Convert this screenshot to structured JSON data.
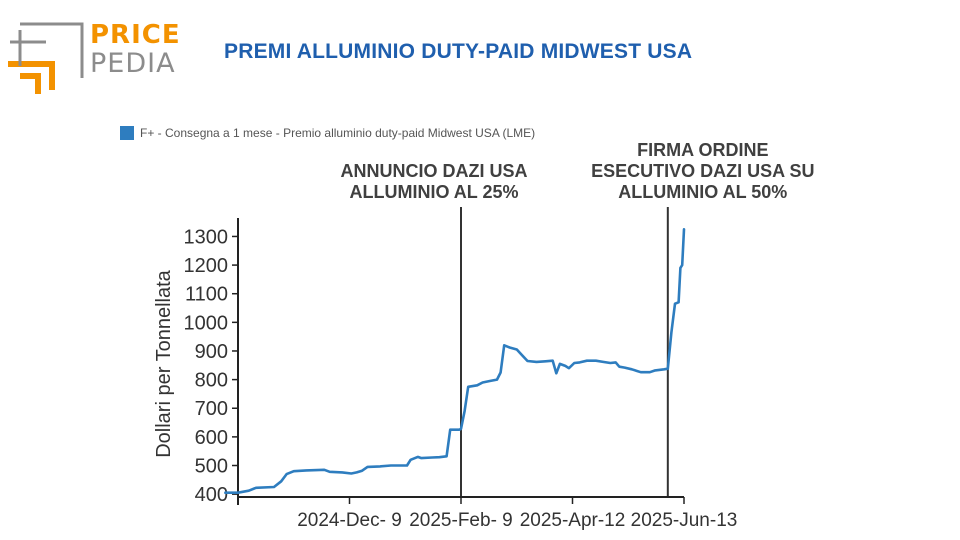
{
  "logo": {
    "line1": "PRICE",
    "line2": "PEDIA",
    "colors": {
      "orange": "#f39200",
      "gray": "#8c8c8c"
    }
  },
  "page_title": "PREMI ALLUMINIO DUTY-PAID MIDWEST USA",
  "colors": {
    "title": "#1f5fae",
    "series": "#2e7dbf",
    "annotation_line": "#333333",
    "annotation_text": "#404040"
  },
  "chart_data": {
    "type": "line",
    "title": "",
    "xlabel": "",
    "ylabel": "Dollari per Tonnellata",
    "ylim": [
      390,
      1340
    ],
    "yticks": [
      400,
      500,
      600,
      700,
      800,
      900,
      1000,
      1100,
      1200,
      1300
    ],
    "xlim": [
      "2024-10-01",
      "2025-06-15"
    ],
    "xticks": [
      {
        "date": "2024-12-09",
        "label": "2024-Dec- 9"
      },
      {
        "date": "2025-02-09",
        "label": "2025-Feb- 9"
      },
      {
        "date": "2025-04-12",
        "label": "2025-Apr-12"
      },
      {
        "date": "2025-06-13",
        "label": "2025-Jun-13"
      }
    ],
    "grid": false,
    "legend_position": "top-left",
    "series": [
      {
        "name": "F+ - Consegna a 1 mese - Premio alluminio duty-paid Midwest USA (LME)",
        "points": [
          [
            "2024-10-01",
            405
          ],
          [
            "2024-10-08",
            405
          ],
          [
            "2024-10-14",
            412
          ],
          [
            "2024-10-18",
            422
          ],
          [
            "2024-10-28",
            425
          ],
          [
            "2024-11-01",
            445
          ],
          [
            "2024-11-04",
            470
          ],
          [
            "2024-11-08",
            480
          ],
          [
            "2024-11-15",
            483
          ],
          [
            "2024-11-25",
            485
          ],
          [
            "2024-11-28",
            478
          ],
          [
            "2024-12-05",
            476
          ],
          [
            "2024-12-10",
            472
          ],
          [
            "2024-12-13",
            476
          ],
          [
            "2024-12-16",
            482
          ],
          [
            "2024-12-19",
            495
          ],
          [
            "2024-12-26",
            497
          ],
          [
            "2025-01-01",
            500
          ],
          [
            "2025-01-10",
            500
          ],
          [
            "2025-01-12",
            520
          ],
          [
            "2025-01-16",
            530
          ],
          [
            "2025-01-18",
            526
          ],
          [
            "2025-01-24",
            528
          ],
          [
            "2025-01-28",
            529
          ],
          [
            "2025-02-01",
            532
          ],
          [
            "2025-02-03",
            625
          ],
          [
            "2025-02-08",
            625
          ],
          [
            "2025-02-09",
            628
          ],
          [
            "2025-02-11",
            690
          ],
          [
            "2025-02-13",
            775
          ],
          [
            "2025-02-18",
            780
          ],
          [
            "2025-02-21",
            790
          ],
          [
            "2025-02-25",
            795
          ],
          [
            "2025-03-01",
            800
          ],
          [
            "2025-03-03",
            825
          ],
          [
            "2025-03-05",
            920
          ],
          [
            "2025-03-08",
            912
          ],
          [
            "2025-03-12",
            905
          ],
          [
            "2025-03-15",
            885
          ],
          [
            "2025-03-18",
            865
          ],
          [
            "2025-03-23",
            862
          ],
          [
            "2025-03-28",
            864
          ],
          [
            "2025-04-01",
            866
          ],
          [
            "2025-04-03",
            822
          ],
          [
            "2025-04-05",
            855
          ],
          [
            "2025-04-08",
            848
          ],
          [
            "2025-04-10",
            840
          ],
          [
            "2025-04-13",
            858
          ],
          [
            "2025-04-16",
            860
          ],
          [
            "2025-04-20",
            866
          ],
          [
            "2025-04-25",
            866
          ],
          [
            "2025-04-29",
            862
          ],
          [
            "2025-05-03",
            858
          ],
          [
            "2025-05-06",
            860
          ],
          [
            "2025-05-08",
            845
          ],
          [
            "2025-05-11",
            842
          ],
          [
            "2025-05-15",
            836
          ],
          [
            "2025-05-20",
            826
          ],
          [
            "2025-05-25",
            826
          ],
          [
            "2025-05-28",
            832
          ],
          [
            "2025-06-02",
            836
          ],
          [
            "2025-06-04",
            838
          ],
          [
            "2025-06-06",
            965
          ],
          [
            "2025-06-08",
            1065
          ],
          [
            "2025-06-10",
            1070
          ],
          [
            "2025-06-11",
            1190
          ],
          [
            "2025-06-12",
            1200
          ],
          [
            "2025-06-13",
            1325
          ]
        ]
      }
    ],
    "annotations": [
      {
        "date": "2025-02-09",
        "lines": [
          "ANNUNCIO DAZI USA",
          "ALLUMINIO AL 25%"
        ]
      },
      {
        "date": "2025-06-04",
        "lines": [
          "FIRMA ORDINE",
          "ESECUTIVO DAZI USA SU",
          "ALLUMINIO AL 50%"
        ]
      }
    ]
  }
}
